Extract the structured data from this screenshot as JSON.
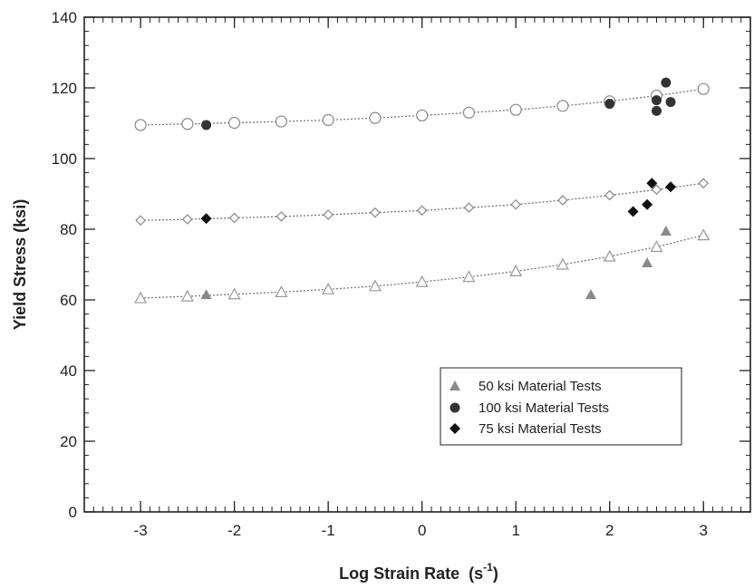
{
  "chart_data": {
    "type": "scatter",
    "title": "",
    "xlabel": "Log Strain Rate",
    "xlabel_unit_base": "(s",
    "xlabel_unit_exp": "-1",
    "xlabel_unit_close": ")",
    "ylabel": "Yield Stress  (ksi)",
    "xlim": [
      -3.6,
      3.5
    ],
    "ylim": [
      0,
      140
    ],
    "x_ticks": [
      -3,
      -2,
      -1,
      0,
      1,
      2,
      3
    ],
    "y_ticks": [
      0,
      20,
      40,
      60,
      80,
      100,
      120,
      140
    ],
    "grid": false,
    "legend_position": "bottom-right",
    "fit_lines": [
      {
        "marker": "open-circle",
        "x": [
          -3,
          -2.5,
          -2,
          -1.5,
          -1,
          -0.5,
          0,
          0.5,
          1,
          1.5,
          2,
          2.5,
          3
        ],
        "y": [
          109.5,
          109.8,
          110.1,
          110.5,
          110.9,
          111.5,
          112.2,
          113.0,
          113.8,
          114.9,
          116.2,
          117.8,
          119.7
        ]
      },
      {
        "marker": "open-diamond",
        "x": [
          -3,
          -2.5,
          -2,
          -1.5,
          -1,
          -0.5,
          0,
          0.5,
          1,
          1.5,
          2,
          2.5,
          3
        ],
        "y": [
          82.5,
          82.8,
          83.2,
          83.6,
          84.1,
          84.7,
          85.3,
          86.1,
          87.0,
          88.2,
          89.6,
          91.2,
          93.0
        ]
      },
      {
        "marker": "open-triangle",
        "x": [
          -3,
          -2.5,
          -2,
          -1.5,
          -1,
          -0.5,
          0,
          0.5,
          1,
          1.5,
          2,
          2.5,
          3
        ],
        "y": [
          60.5,
          61.0,
          61.6,
          62.2,
          63.0,
          63.9,
          65.1,
          66.5,
          68.1,
          70.0,
          72.3,
          75.0,
          78.3
        ]
      }
    ],
    "series": [
      {
        "name": "50 ksi Material Tests",
        "marker": "triangle",
        "color": "#8a8a8a",
        "x": [
          -2.3,
          1.8,
          2.4,
          2.6
        ],
        "y": [
          61.5,
          61.5,
          70.5,
          79.5
        ]
      },
      {
        "name": "100 ksi Material Tests",
        "marker": "circle",
        "color": "#333333",
        "x": [
          -2.3,
          2.0,
          2.5,
          2.5,
          2.6,
          2.65
        ],
        "y": [
          109.5,
          115.5,
          116.5,
          113.5,
          121.5,
          116.0
        ]
      },
      {
        "name": "75 ksi Material Tests",
        "marker": "diamond",
        "color": "#111111",
        "x": [
          -2.3,
          2.25,
          2.4,
          2.45,
          2.65
        ],
        "y": [
          83.0,
          85.0,
          87.0,
          93.0,
          92.0
        ]
      }
    ]
  }
}
